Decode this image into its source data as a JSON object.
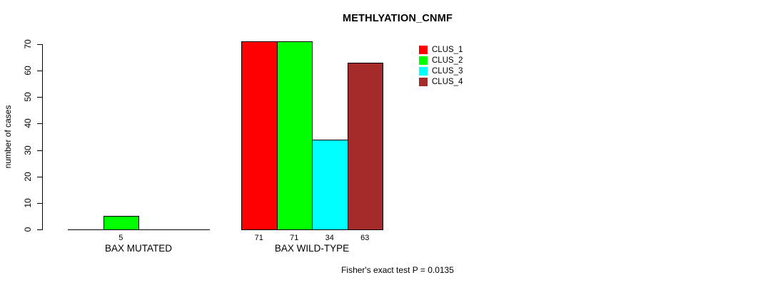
{
  "chart_data": {
    "type": "bar",
    "title": "METHLYATION_CNMF",
    "ylabel": "number of cases",
    "xlabel": "",
    "annotation": "Fisher's exact test P = 0.0135",
    "categories": [
      "BAX MUTATED",
      "BAX WILD-TYPE"
    ],
    "series": [
      {
        "name": "CLUS_1",
        "color": "#ff0000",
        "values": [
          0,
          71
        ]
      },
      {
        "name": "CLUS_2",
        "color": "#00ff00",
        "values": [
          5,
          71
        ]
      },
      {
        "name": "CLUS_3",
        "color": "#00ffff",
        "values": [
          0,
          34
        ]
      },
      {
        "name": "CLUS_4",
        "color": "#a52a2a",
        "values": [
          0,
          63
        ]
      }
    ],
    "bar_labels": [
      [
        "",
        "5",
        "",
        ""
      ],
      [
        "71",
        "71",
        "34",
        "63"
      ]
    ],
    "yticks": [
      0,
      10,
      20,
      30,
      40,
      50,
      60,
      70
    ],
    "ylim": [
      0,
      70
    ],
    "grid": false,
    "legend": {
      "position": "top-right",
      "entries": [
        {
          "label": "CLUS_1",
          "color": "#ff0000"
        },
        {
          "label": "CLUS_2",
          "color": "#00ff00"
        },
        {
          "label": "CLUS_3",
          "color": "#00ffff"
        },
        {
          "label": "CLUS_4",
          "color": "#a52a2a"
        }
      ]
    },
    "colors": {
      "background": "#ffffff",
      "axis": "#000000",
      "bar_border": "#000000",
      "text": "#000000"
    }
  }
}
